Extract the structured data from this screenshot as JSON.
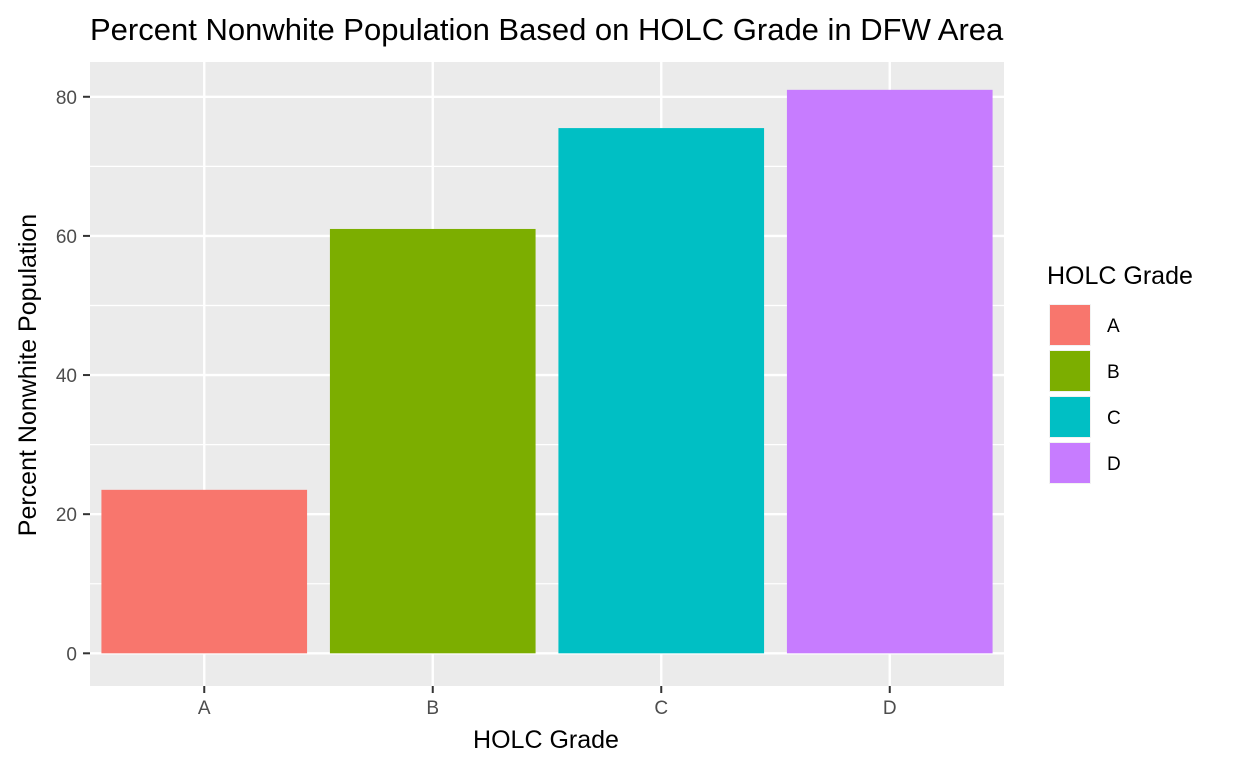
{
  "chart_data": {
    "type": "bar",
    "title": "Percent Nonwhite Population Based on HOLC Grade in DFW Area",
    "xlabel": "HOLC Grade",
    "ylabel": "Percent Nonwhite Population",
    "categories": [
      "A",
      "B",
      "C",
      "D"
    ],
    "values": [
      23.5,
      61.0,
      75.5,
      81.0
    ],
    "colors": [
      "#F8766D",
      "#7CAE00",
      "#00BFC4",
      "#C77CFF"
    ],
    "ylim": [
      -4.7,
      85.0
    ],
    "yticks": [
      0,
      20,
      40,
      60,
      80
    ],
    "yticks_minor": [
      10,
      30,
      50,
      70
    ],
    "grid": true,
    "legend": {
      "title": "HOLC Grade",
      "position": "right",
      "entries": [
        "A",
        "B",
        "C",
        "D"
      ]
    }
  }
}
